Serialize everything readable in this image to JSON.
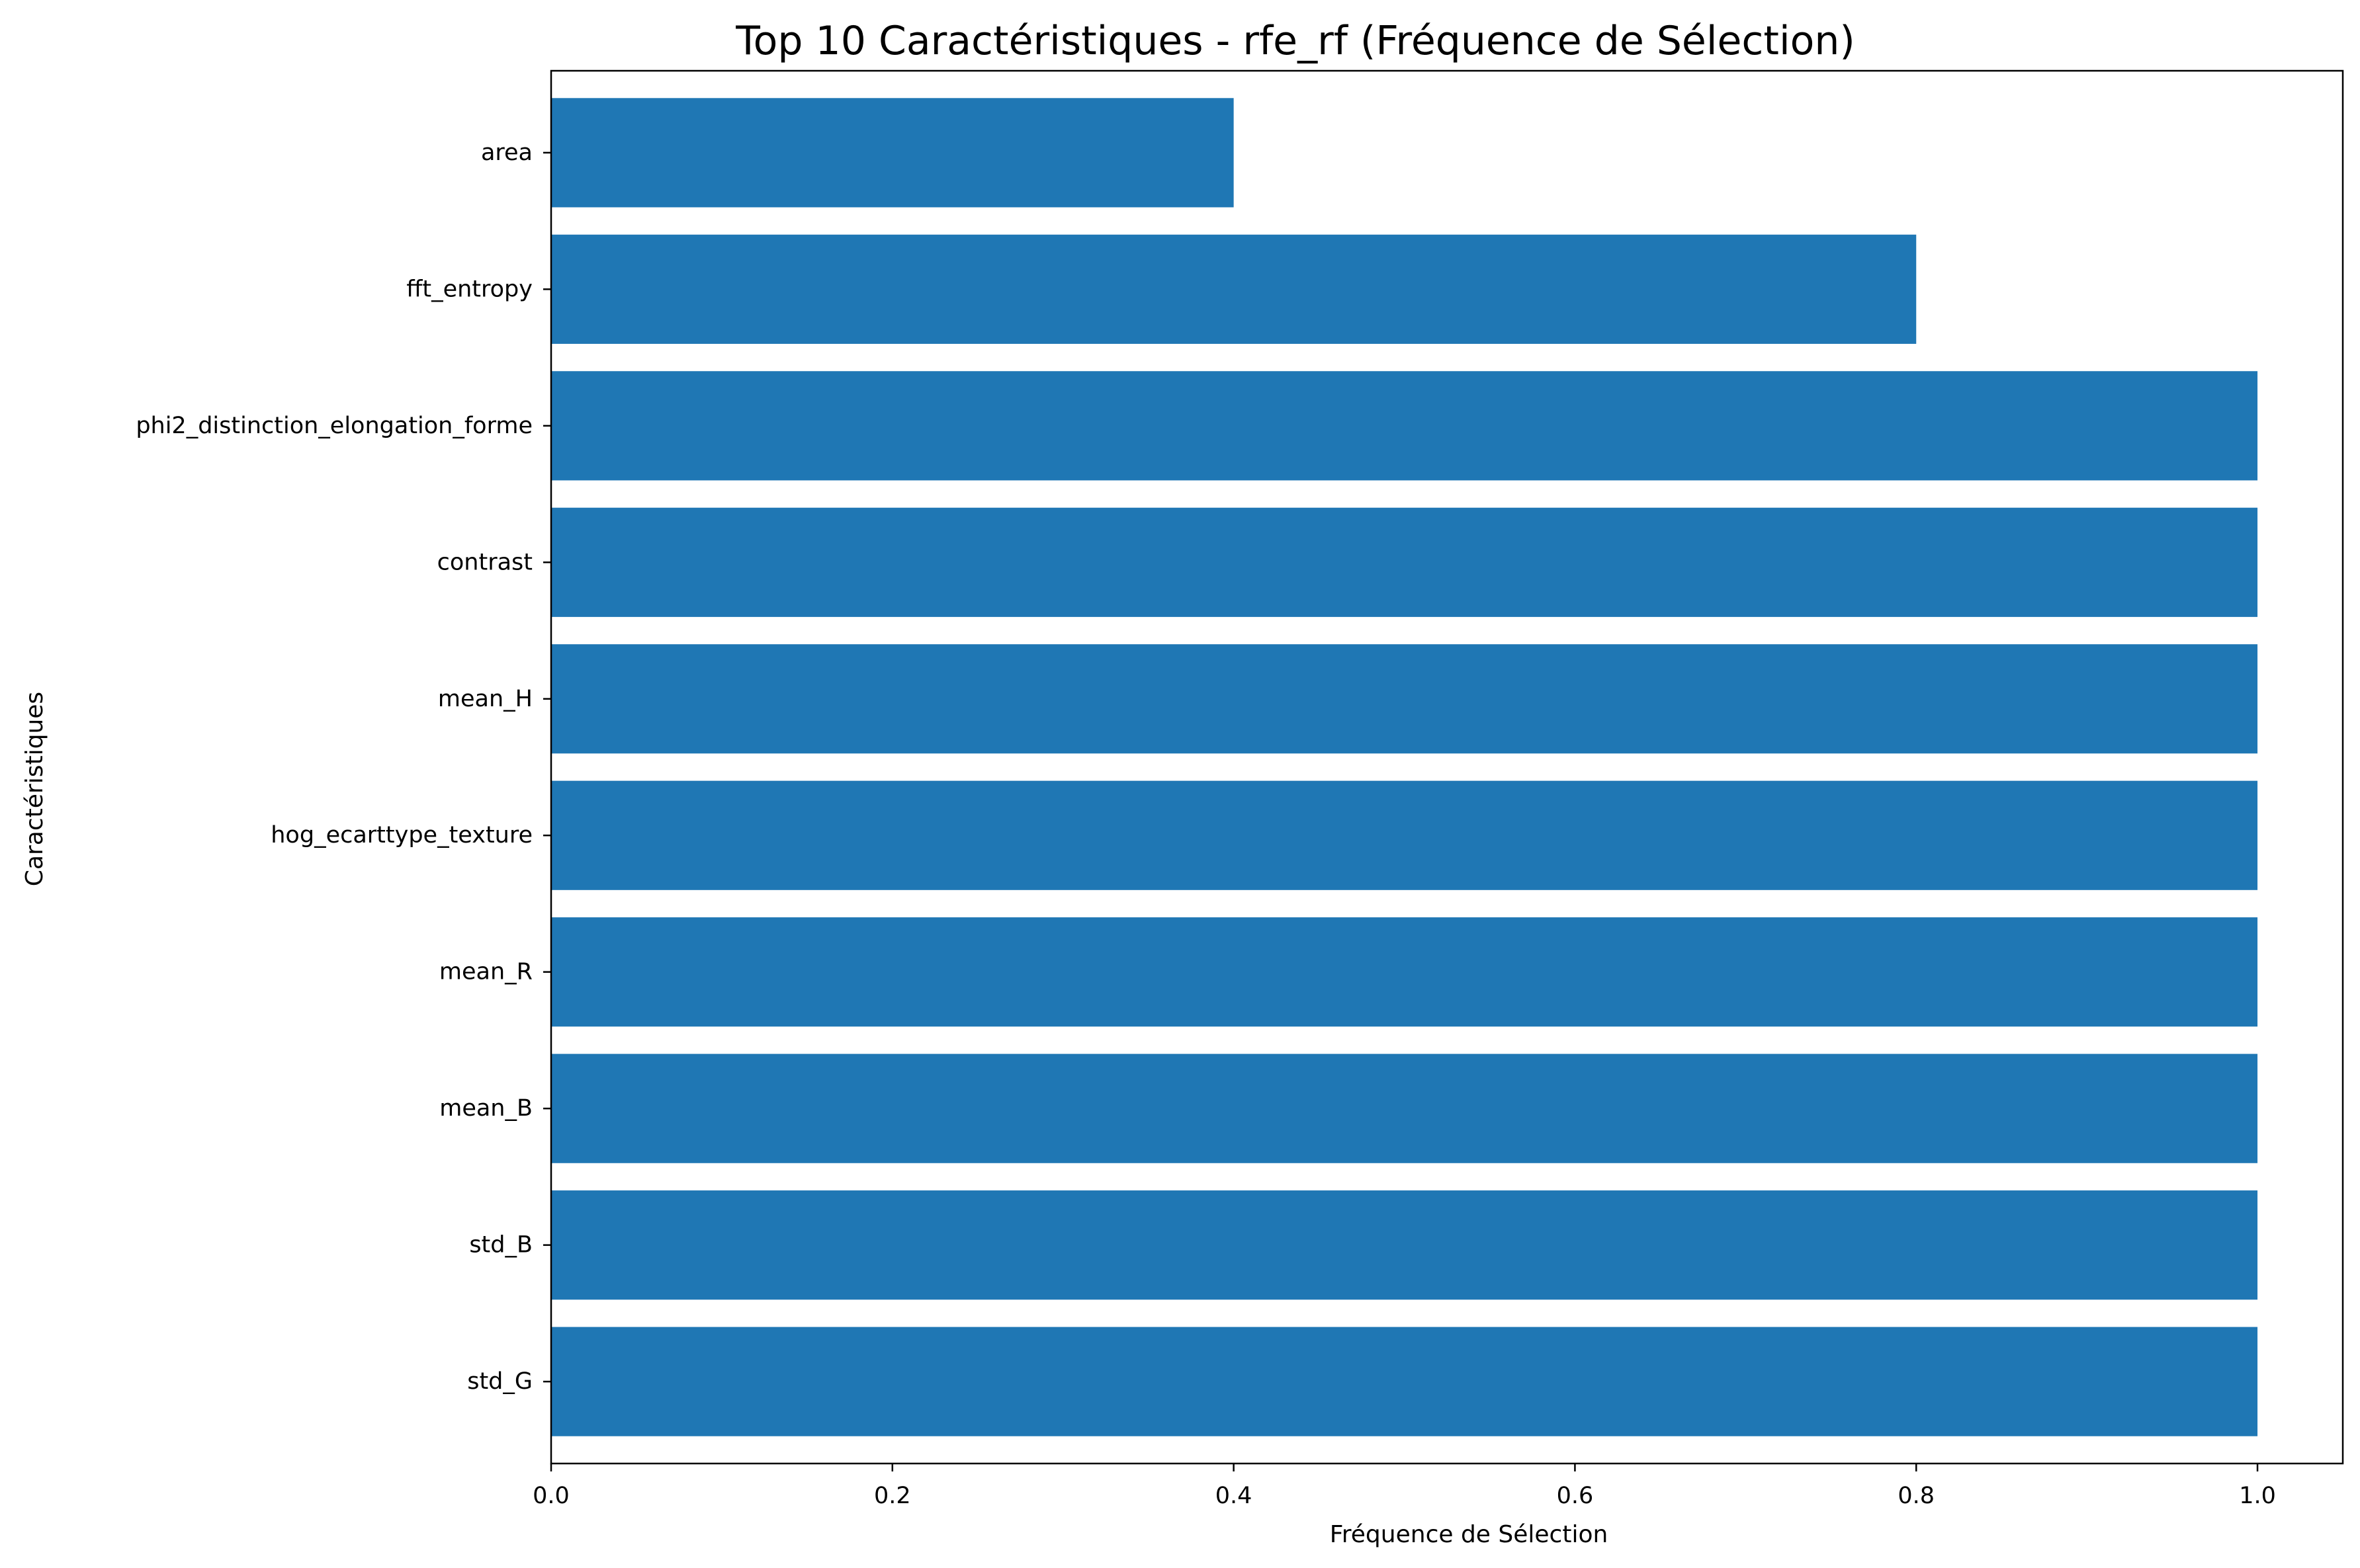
{
  "chart_data": {
    "type": "bar",
    "orientation": "horizontal",
    "title": "Top 10 Caractéristiques - rfe_rf (Fréquence de Sélection)",
    "xlabel": "Fréquence de Sélection",
    "ylabel": "Caractéristiques",
    "categories": [
      "area",
      "fft_entropy",
      "phi2_distinction_elongation_forme",
      "contrast",
      "mean_H",
      "hog_ecarttype_texture",
      "mean_R",
      "mean_B",
      "std_B",
      "std_G"
    ],
    "values": [
      0.4,
      0.8,
      1.0,
      1.0,
      1.0,
      1.0,
      1.0,
      1.0,
      1.0,
      1.0
    ],
    "xlim": [
      0,
      1.05
    ],
    "xticks": [
      0.0,
      0.2,
      0.4,
      0.6,
      0.8,
      1.0
    ],
    "xtick_labels": [
      "0.0",
      "0.2",
      "0.4",
      "0.6",
      "0.8",
      "1.0"
    ],
    "grid": false,
    "bar_color": "#1f77b4"
  }
}
